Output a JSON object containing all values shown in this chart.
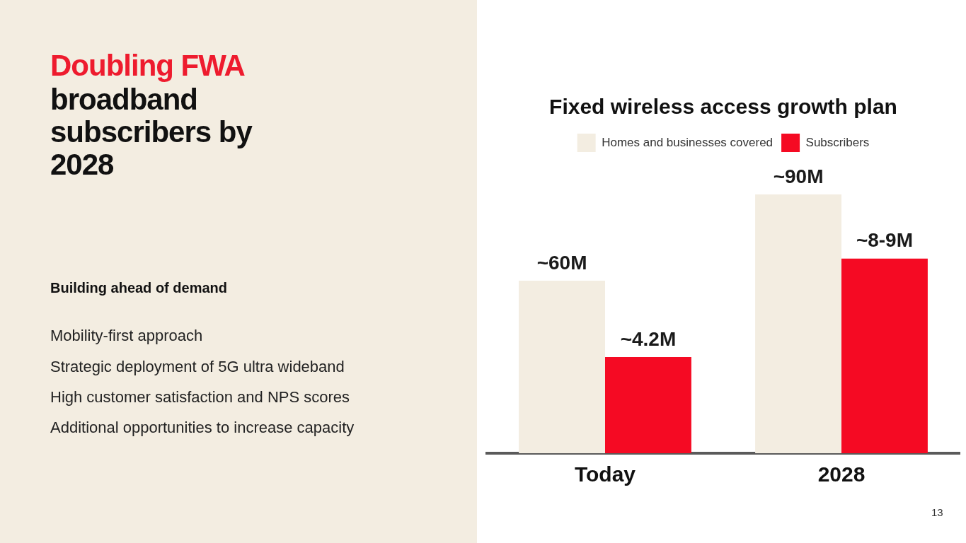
{
  "chart_data": {
    "type": "bar",
    "title": "Fixed wireless access growth plan",
    "categories": [
      "Today",
      "2028"
    ],
    "ylim": [
      0,
      90
    ],
    "y2lim": [
      0,
      11.3
    ],
    "tick_labels": false,
    "legend": "top",
    "series": [
      {
        "name": "Homes and businesses covered",
        "color": "#f3ede1",
        "values": [
          60,
          90
        ],
        "value_labels": [
          "~60M",
          "~90M"
        ]
      },
      {
        "name": "Subscribers",
        "color": "#f50a23",
        "axis": "y2",
        "values": [
          4.2,
          8.5
        ],
        "value_labels": [
          "~4.2M",
          "~8-9M"
        ]
      }
    ],
    "annotations": [
      "Doubling FWA",
      "broadband subscribers by 2028",
      "Building ahead of demand",
      "Mobility-first approach",
      "Strategic deployment of 5G ultra wideband",
      "High customer satisfaction and NPS scores",
      "Additional opportunities to increase capacity",
      "13"
    ]
  }
}
